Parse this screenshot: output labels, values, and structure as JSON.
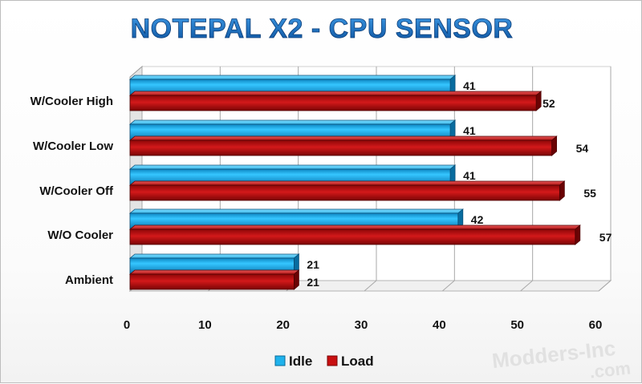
{
  "chart_data": {
    "type": "bar",
    "orientation": "horizontal",
    "title": "NOTEPAL X2 - CPU SENSOR",
    "categories": [
      "W/Cooler High",
      "W/Cooler Low",
      "W/Cooler Off",
      "W/O Cooler",
      "Ambient"
    ],
    "series": [
      {
        "name": "Idle",
        "values": [
          41,
          41,
          41,
          42,
          21
        ],
        "color": "#1fb2ec"
      },
      {
        "name": "Load",
        "values": [
          52,
          54,
          55,
          57,
          21
        ],
        "color": "#c80f10"
      }
    ],
    "xlim": [
      0,
      60
    ],
    "xticks": [
      "0",
      "10",
      "20",
      "30",
      "40",
      "50",
      "60"
    ],
    "grid": true,
    "legend_position": "bottom",
    "style": "3d",
    "title_color": "#1a6fbf"
  },
  "watermark": {
    "line1": "Modders-Inc",
    "line2": ".com"
  }
}
